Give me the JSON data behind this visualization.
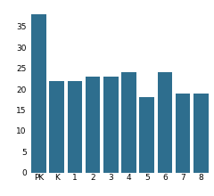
{
  "categories": [
    "PK",
    "K",
    "1",
    "2",
    "3",
    "4",
    "5",
    "6",
    "7",
    "8"
  ],
  "values": [
    38,
    22,
    22,
    23,
    23,
    24,
    18,
    24,
    19,
    19
  ],
  "bar_color": "#2e6e8e",
  "ylim": [
    0,
    40
  ],
  "yticks": [
    0,
    5,
    10,
    15,
    20,
    25,
    30,
    35
  ],
  "background_color": "#ffffff",
  "tick_fontsize": 6.5,
  "bar_width": 0.82
}
